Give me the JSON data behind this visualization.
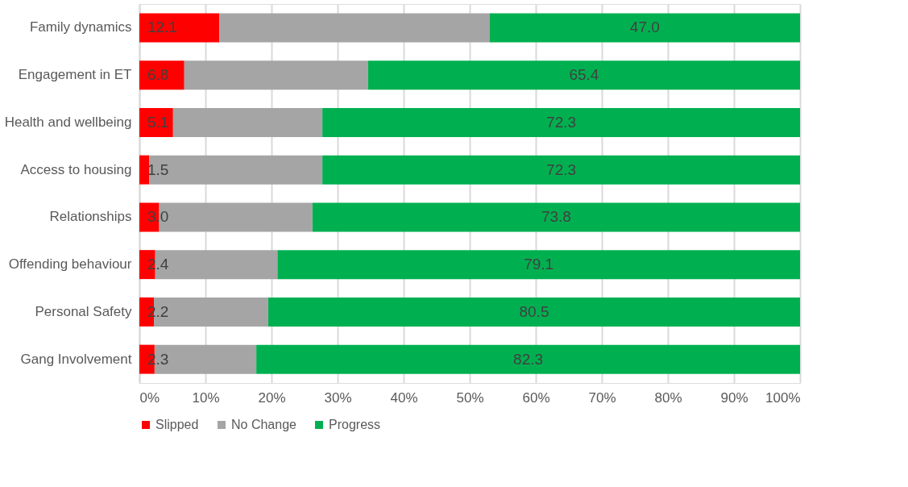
{
  "chart_data": {
    "type": "bar",
    "orientation": "horizontal",
    "stacked": true,
    "categories": [
      "Family dynamics",
      "Engagement in ET",
      "Health and wellbeing",
      "Access to housing",
      "Relationships",
      "Offending behaviour",
      "Personal Safety",
      "Gang Involvement"
    ],
    "series": [
      {
        "name": "Slipped",
        "color": "#ff0000",
        "values": [
          12.1,
          6.8,
          5.1,
          1.5,
          3.0,
          2.4,
          2.2,
          2.3
        ],
        "value_labels": [
          "12.1",
          "6.8",
          "5.1",
          "1.5",
          "3.0",
          "2.4",
          "2.2",
          "2.3"
        ]
      },
      {
        "name": "No Change",
        "color": "#a5a5a5",
        "values": [
          40.9,
          27.8,
          22.6,
          26.2,
          23.2,
          18.5,
          17.3,
          15.4
        ]
      },
      {
        "name": "Progress",
        "color": "#00b050",
        "values": [
          47.0,
          65.4,
          72.3,
          72.3,
          73.8,
          79.1,
          80.5,
          82.3
        ],
        "value_labels": [
          "47.0",
          "65.4",
          "72.3",
          "72.3",
          "73.8",
          "79.1",
          "80.5",
          "82.3"
        ]
      }
    ],
    "xlim": [
      0,
      100
    ],
    "xticks": [
      {
        "value": 0,
        "label": "0%"
      },
      {
        "value": 10,
        "label": "10%"
      },
      {
        "value": 20,
        "label": "20%"
      },
      {
        "value": 30,
        "label": "30%"
      },
      {
        "value": 40,
        "label": "40%"
      },
      {
        "value": 50,
        "label": "50%"
      },
      {
        "value": 60,
        "label": "60%"
      },
      {
        "value": 70,
        "label": "70%"
      },
      {
        "value": 80,
        "label": "80%"
      },
      {
        "value": 90,
        "label": "90%"
      },
      {
        "value": 100,
        "label": "100%"
      }
    ],
    "grid": "x",
    "legend": "bottom"
  }
}
